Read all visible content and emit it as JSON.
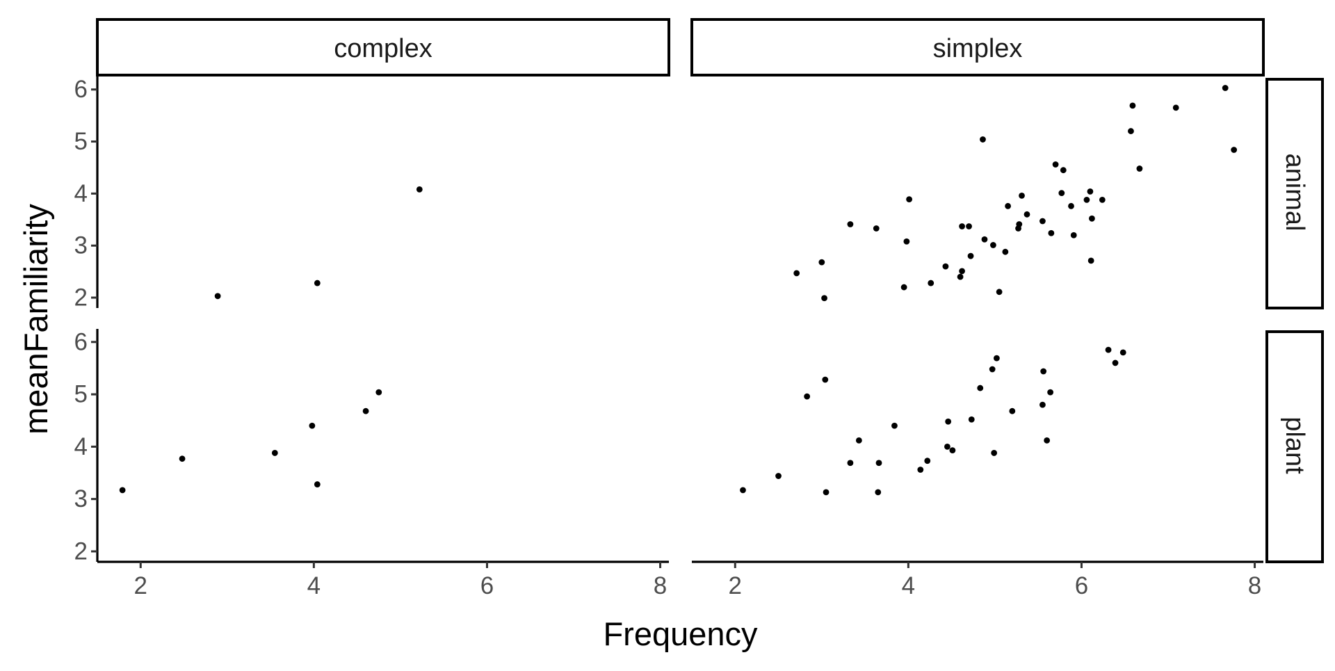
{
  "chart_data": {
    "type": "scatter",
    "xlabel": "Frequency",
    "ylabel": "meanFamiliarity",
    "xlim": [
      1.5,
      8.1
    ],
    "ylim": [
      1.8,
      6.25
    ],
    "x_ticks": [
      2,
      4,
      6,
      8
    ],
    "y_ticks": [
      2,
      3,
      4,
      5,
      6
    ],
    "x_tick_labels": [
      "2",
      "4",
      "6",
      "8"
    ],
    "y_tick_labels": [
      "2",
      "3",
      "4",
      "5",
      "6"
    ],
    "col_facets": [
      "complex",
      "simplex"
    ],
    "row_facets": [
      "animal",
      "plant"
    ],
    "grid": false,
    "point_color": "#000000",
    "panels": [
      {
        "col": "complex",
        "row": "animal",
        "points": [
          [
            2.89,
            2.03
          ],
          [
            4.04,
            2.28
          ],
          [
            5.22,
            4.08
          ]
        ]
      },
      {
        "col": "complex",
        "row": "plant",
        "points": [
          [
            1.79,
            3.17
          ],
          [
            2.48,
            3.77
          ],
          [
            3.55,
            3.88
          ],
          [
            3.98,
            4.4
          ],
          [
            4.04,
            3.28
          ],
          [
            4.6,
            4.68
          ],
          [
            4.75,
            5.04
          ]
        ]
      },
      {
        "col": "simplex",
        "row": "animal",
        "points": [
          [
            2.71,
            2.47
          ],
          [
            3.0,
            2.68
          ],
          [
            3.03,
            1.99
          ],
          [
            3.33,
            3.41
          ],
          [
            3.63,
            3.33
          ],
          [
            3.95,
            2.2
          ],
          [
            3.98,
            3.08
          ],
          [
            4.01,
            3.89
          ],
          [
            4.26,
            2.28
          ],
          [
            4.43,
            2.6
          ],
          [
            4.6,
            2.4
          ],
          [
            4.62,
            2.51
          ],
          [
            4.62,
            3.37
          ],
          [
            4.7,
            3.37
          ],
          [
            4.72,
            2.8
          ],
          [
            4.86,
            5.04
          ],
          [
            4.88,
            3.12
          ],
          [
            4.98,
            3.01
          ],
          [
            5.05,
            2.11
          ],
          [
            5.12,
            2.88
          ],
          [
            5.15,
            3.76
          ],
          [
            5.27,
            3.33
          ],
          [
            5.28,
            3.41
          ],
          [
            5.31,
            3.96
          ],
          [
            5.37,
            3.6
          ],
          [
            5.55,
            3.47
          ],
          [
            5.65,
            3.24
          ],
          [
            5.7,
            4.56
          ],
          [
            5.77,
            4.01
          ],
          [
            5.79,
            4.45
          ],
          [
            5.88,
            3.76
          ],
          [
            5.91,
            3.2
          ],
          [
            6.06,
            3.88
          ],
          [
            6.1,
            4.04
          ],
          [
            6.11,
            2.71
          ],
          [
            6.12,
            3.52
          ],
          [
            6.24,
            3.88
          ],
          [
            6.57,
            5.2
          ],
          [
            6.59,
            5.69
          ],
          [
            6.67,
            4.48
          ],
          [
            7.09,
            5.65
          ],
          [
            7.66,
            6.03
          ],
          [
            7.76,
            4.84
          ]
        ]
      },
      {
        "col": "simplex",
        "row": "plant",
        "points": [
          [
            2.09,
            3.17
          ],
          [
            2.5,
            3.44
          ],
          [
            2.83,
            4.96
          ],
          [
            3.04,
            5.28
          ],
          [
            3.05,
            3.13
          ],
          [
            3.33,
            3.69
          ],
          [
            3.43,
            4.12
          ],
          [
            3.65,
            3.13
          ],
          [
            3.66,
            3.69
          ],
          [
            3.84,
            4.4
          ],
          [
            4.14,
            3.56
          ],
          [
            4.22,
            3.73
          ],
          [
            4.45,
            4.0
          ],
          [
            4.46,
            4.48
          ],
          [
            4.51,
            3.93
          ],
          [
            4.73,
            4.52
          ],
          [
            4.83,
            5.12
          ],
          [
            4.97,
            5.48
          ],
          [
            4.99,
            3.88
          ],
          [
            5.02,
            5.69
          ],
          [
            5.2,
            4.68
          ],
          [
            5.55,
            4.8
          ],
          [
            5.56,
            5.44
          ],
          [
            5.6,
            4.12
          ],
          [
            5.64,
            5.04
          ],
          [
            6.31,
            5.85
          ],
          [
            6.39,
            5.6
          ],
          [
            6.48,
            5.8
          ]
        ]
      }
    ]
  }
}
